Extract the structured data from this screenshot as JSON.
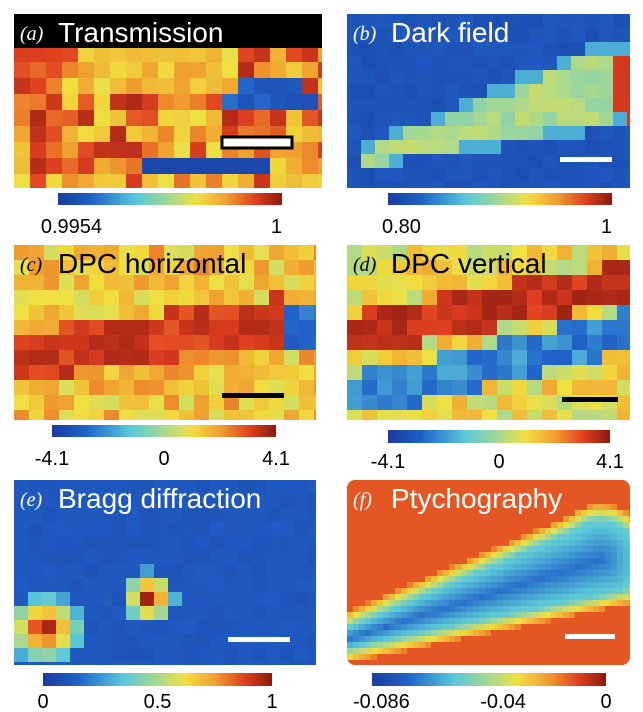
{
  "panels": [
    {
      "label": "(a)",
      "title": "Transmission",
      "colorbar_ticks": [
        "0.9954",
        "1"
      ]
    },
    {
      "label": "(b)",
      "title": "Dark field",
      "colorbar_ticks": [
        "0.80",
        "1"
      ]
    },
    {
      "label": "(c)",
      "title": "DPC horizontal",
      "colorbar_ticks": [
        "-4.1",
        "0",
        "4.1"
      ]
    },
    {
      "label": "(d)",
      "title": "DPC vertical",
      "colorbar_ticks": [
        "-4.1",
        "0",
        "4.1"
      ]
    },
    {
      "label": "(e)",
      "title": "Bragg diffraction",
      "colorbar_ticks": [
        "0",
        "0.5",
        "1"
      ]
    },
    {
      "label": "(f)",
      "title": "Ptychography",
      "colorbar_ticks": [
        "-0.086",
        "-0.04",
        "0"
      ]
    }
  ]
}
